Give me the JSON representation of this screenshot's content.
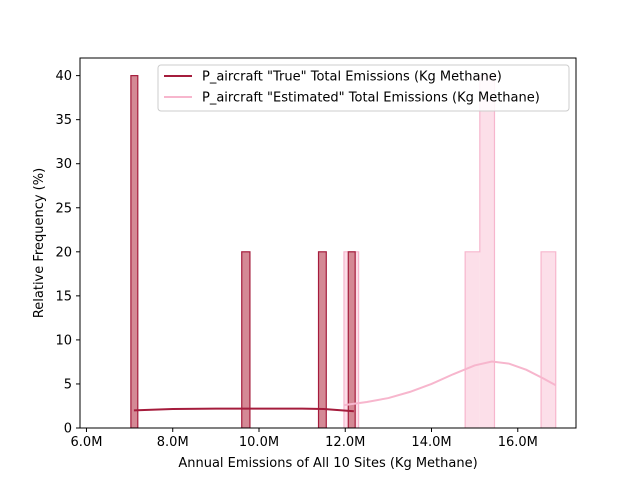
{
  "chart_data": {
    "type": "bar",
    "title": "",
    "xlabel": "Annual Emissions of All 10 Sites (Kg Methane)",
    "ylabel": "Relative Frequency (%)",
    "xlim": [
      5850000,
      17350000
    ],
    "ylim": [
      0,
      42
    ],
    "x_ticks": [
      6000000,
      8000000,
      10000000,
      12000000,
      14000000,
      16000000
    ],
    "x_tick_labels": [
      "6.0M",
      "8.0M",
      "10.0M",
      "12.0M",
      "14.0M",
      "16.0M"
    ],
    "y_ticks": [
      0,
      5,
      10,
      15,
      20,
      25,
      30,
      35,
      40
    ],
    "y_tick_labels": [
      "0",
      "5",
      "10",
      "15",
      "20",
      "25",
      "30",
      "35",
      "40"
    ],
    "grid": false,
    "legend_position": "top-right",
    "series": [
      {
        "name": "P_aircraft \"True\" Total Emissions (Kg Methane)",
        "color": "#a51c3c",
        "fill_color": "#d2838f",
        "style": "bars",
        "bins": [
          {
            "x0": 7030000,
            "x1": 7190000,
            "value": 40
          },
          {
            "x0": 9600000,
            "x1": 9790000,
            "value": 20
          },
          {
            "x0": 11380000,
            "x1": 11560000,
            "value": 20
          },
          {
            "x0": 12070000,
            "x1": 12230000,
            "value": 20
          }
        ],
        "kde": {
          "x": [
            7100000,
            8000000,
            9000000,
            10000000,
            11000000,
            11500000,
            12200000
          ],
          "y": [
            2.0,
            2.15,
            2.2,
            2.2,
            2.2,
            2.15,
            1.9
          ]
        }
      },
      {
        "name": "P_aircraft \"Estimated\" Total Emissions (Kg Methane)",
        "color": "#f7b6cd",
        "fill_color": "#fbd9e5",
        "style": "step",
        "bins": [
          {
            "x0": 11970000,
            "x1": 12310000,
            "value": 20
          },
          {
            "x0": 14780000,
            "x1": 15120000,
            "value": 20
          },
          {
            "x0": 15120000,
            "x1": 15460000,
            "value": 40
          },
          {
            "x0": 16540000,
            "x1": 16880000,
            "value": 20
          }
        ],
        "kde": {
          "x": [
            11970000,
            12500000,
            13000000,
            13500000,
            14000000,
            14500000,
            15000000,
            15400000,
            15800000,
            16200000,
            16600000,
            16880000
          ],
          "y": [
            2.6,
            2.95,
            3.4,
            4.1,
            5.0,
            6.1,
            7.1,
            7.55,
            7.3,
            6.6,
            5.6,
            4.85
          ]
        }
      }
    ]
  }
}
